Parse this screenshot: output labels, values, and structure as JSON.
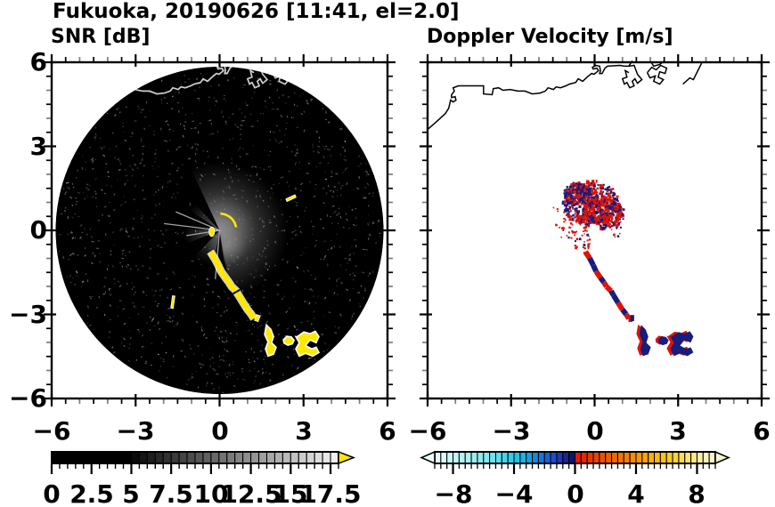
{
  "title": "Fukuoka, 20190626 [11:41, el=2.0]",
  "panels": {
    "snr": {
      "subtitle": "SNR [dB]"
    },
    "doppler": {
      "subtitle": "Doppler Velocity [m/s]"
    }
  },
  "axes": {
    "xlim": [
      -6,
      6
    ],
    "ylim": [
      -6,
      6
    ],
    "major_step": 3,
    "minor_step": 0.5,
    "x_tick_labels": [
      {
        "v": -6,
        "label": "−6"
      },
      {
        "v": -3,
        "label": "−3"
      },
      {
        "v": 0,
        "label": "0"
      },
      {
        "v": 3,
        "label": "3"
      },
      {
        "v": 6,
        "label": "6"
      }
    ],
    "y_tick_labels": [
      {
        "v": 6,
        "label": "6"
      },
      {
        "v": 3,
        "label": "3"
      },
      {
        "v": 0,
        "label": "0"
      },
      {
        "v": -3,
        "label": "−3"
      },
      {
        "v": -6,
        "label": "−6"
      }
    ]
  },
  "colorbars": {
    "snr": {
      "min": 0,
      "max": 18,
      "cells": 36,
      "tick_labels": [
        {
          "v": 0,
          "label": "0"
        },
        {
          "v": 2.5,
          "label": "2.5"
        },
        {
          "v": 5,
          "label": "5"
        },
        {
          "v": 7.5,
          "label": "7.5"
        },
        {
          "v": 10,
          "label": "10"
        },
        {
          "v": 12.5,
          "label": "12.5"
        },
        {
          "v": 15,
          "label": "15"
        },
        {
          "v": 17.5,
          "label": "17.5"
        }
      ],
      "black_below": 4.8,
      "over_arrow_color": "#ffe400"
    },
    "doppler": {
      "min": -9.2,
      "max": 9.2,
      "cells": 46,
      "tick_labels": [
        {
          "v": -8,
          "label": "−8"
        },
        {
          "v": -4,
          "label": "−4"
        },
        {
          "v": 0,
          "label": "0"
        },
        {
          "v": 4,
          "label": "4"
        },
        {
          "v": 8,
          "label": "8"
        }
      ],
      "neg_stops": [
        [
          0,
          "#eafcfc"
        ],
        [
          0.18,
          "#b9f3f3"
        ],
        [
          0.38,
          "#7fe8ef"
        ],
        [
          0.52,
          "#3ad2ea"
        ],
        [
          0.65,
          "#0fb0e4"
        ],
        [
          0.75,
          "#1479dd"
        ],
        [
          0.84,
          "#1e4ed2"
        ],
        [
          0.91,
          "#1c2fae"
        ],
        [
          0.96,
          "#131a80"
        ],
        [
          1,
          "#0e1156"
        ]
      ],
      "pos_stops": [
        [
          0,
          "#e41303"
        ],
        [
          0.12,
          "#ea3a00"
        ],
        [
          0.3,
          "#f26c00"
        ],
        [
          0.48,
          "#fa9d00"
        ],
        [
          0.62,
          "#ffc404"
        ],
        [
          0.76,
          "#ffdd48"
        ],
        [
          0.88,
          "#f9eda6"
        ],
        [
          1,
          "#f8f3d2"
        ]
      ],
      "under_arrow_color": "#eafcfc",
      "over_arrow_color": "#f8f3d2"
    }
  },
  "chart_data": {
    "type": "heatmap",
    "description": "Dual-panel radar PPI display: left = SNR [dB] on a black scan disk, right = Doppler velocity [m/s] on white; coordinates in km from the radar at (0,0).",
    "radar_center_km": [
      0,
      0
    ],
    "disk_radius_km": 5.86,
    "colors": {
      "snr_disk": "#000000",
      "snr_strong_echo": "#ffe800",
      "doppler_positive_red": "#dd1408",
      "doppler_negative_navy": "#161d7c",
      "coast_left": "#e0e0e0",
      "coast_right": "#000000"
    },
    "features": {
      "coastline_km": [
        [
          -6.0,
          3.6
        ],
        [
          -5.68,
          3.88
        ],
        [
          -5.36,
          4.17
        ],
        [
          -5.24,
          4.36
        ],
        [
          -5.17,
          4.65
        ],
        [
          -5.08,
          4.58
        ],
        [
          -4.98,
          4.65
        ],
        [
          -5.01,
          4.77
        ],
        [
          -5.14,
          4.74
        ],
        [
          -5.14,
          4.84
        ],
        [
          -5.04,
          4.97
        ],
        [
          -5.08,
          5.09
        ],
        [
          -4.89,
          5.16
        ],
        [
          -3.99,
          5.16
        ],
        [
          -3.99,
          4.87
        ],
        [
          -3.68,
          4.84
        ],
        [
          -3.64,
          5.06
        ],
        [
          -3.45,
          5.09
        ],
        [
          -3.29,
          5.0
        ],
        [
          -3.04,
          5.03
        ],
        [
          -2.75,
          4.97
        ],
        [
          -2.5,
          4.97
        ],
        [
          -2.24,
          4.87
        ],
        [
          -1.96,
          4.9
        ],
        [
          -1.77,
          4.97
        ],
        [
          -1.67,
          5.09
        ],
        [
          -1.48,
          5.03
        ],
        [
          -1.38,
          5.12
        ],
        [
          -1.23,
          5.09
        ],
        [
          -1.03,
          5.16
        ],
        [
          -0.91,
          5.22
        ],
        [
          -0.68,
          5.28
        ],
        [
          -0.59,
          5.41
        ],
        [
          -0.43,
          5.32
        ],
        [
          -0.27,
          5.47
        ],
        [
          -0.11,
          5.6
        ],
        [
          -0.02,
          5.57
        ],
        [
          0.14,
          5.7
        ],
        [
          0.08,
          5.79
        ],
        [
          -0.05,
          5.76
        ],
        [
          -0.08,
          5.82
        ],
        [
          0.05,
          5.89
        ],
        [
          0.18,
          5.86
        ],
        [
          0.21,
          5.7
        ],
        [
          0.18,
          5.6
        ],
        [
          0.27,
          5.6
        ],
        [
          0.37,
          5.79
        ],
        [
          0.46,
          5.86
        ],
        [
          0.91,
          5.89
        ],
        [
          1.07,
          5.86
        ],
        [
          1.23,
          5.86
        ],
        [
          1.35,
          6.05
        ]
      ],
      "coast_extras": [
        [
          [
            1.23,
            5.86
          ],
          [
            1.42,
            5.89
          ],
          [
            1.54,
            5.57
          ],
          [
            1.7,
            5.38
          ],
          [
            1.54,
            5.25
          ],
          [
            1.45,
            5.41
          ],
          [
            1.35,
            5.32
          ],
          [
            1.42,
            5.16
          ],
          [
            1.26,
            5.09
          ],
          [
            1.16,
            5.28
          ],
          [
            1.07,
            5.22
          ],
          [
            1.0,
            5.41
          ],
          [
            1.16,
            5.47
          ],
          [
            1.1,
            5.7
          ],
          [
            1.23,
            5.63
          ]
        ],
        [
          [
            1.89,
            5.63
          ],
          [
            2.05,
            5.82
          ],
          [
            2.21,
            5.73
          ],
          [
            2.37,
            5.89
          ],
          [
            2.59,
            5.79
          ],
          [
            2.53,
            5.6
          ],
          [
            2.34,
            5.66
          ],
          [
            2.28,
            5.47
          ],
          [
            2.47,
            5.38
          ],
          [
            2.34,
            5.22
          ],
          [
            2.12,
            5.32
          ],
          [
            2.18,
            5.51
          ],
          [
            1.99,
            5.44
          ],
          [
            1.89,
            5.63
          ]
        ],
        [
          [
            2.02,
            6.02
          ],
          [
            2.12,
            5.86
          ],
          [
            2.34,
            5.92
          ],
          [
            2.47,
            6.02
          ]
        ],
        [
          [
            3.17,
            5.22
          ],
          [
            3.42,
            5.44
          ],
          [
            3.55,
            5.38
          ],
          [
            3.87,
            6.02
          ]
        ]
      ],
      "streak_km": [
        [
          -0.33,
          -0.76
        ],
        [
          -0.18,
          -0.99
        ],
        [
          -0.05,
          -1.24
        ],
        [
          0.05,
          -1.46
        ],
        [
          0.21,
          -1.69
        ],
        [
          0.33,
          -1.85
        ],
        [
          0.43,
          -2.01
        ],
        [
          0.59,
          -2.16
        ],
        [
          0.68,
          -2.32
        ],
        [
          0.84,
          -2.58
        ],
        [
          1.0,
          -2.83
        ],
        [
          1.13,
          -2.99
        ],
        [
          1.23,
          -3.15
        ]
      ],
      "streak_doppler_colors": [
        "red",
        "navy",
        "navy",
        "red",
        "navy",
        "red",
        "red",
        "navy",
        "navy",
        "red",
        "navy",
        "red"
      ],
      "blobs_km": [
        {
          "points": [
            [
              1.67,
              -3.37
            ],
            [
              1.83,
              -3.53
            ],
            [
              1.93,
              -3.79
            ],
            [
              1.86,
              -4.01
            ],
            [
              2.02,
              -4.17
            ],
            [
              1.93,
              -4.42
            ],
            [
              1.73,
              -4.49
            ],
            [
              1.64,
              -4.23
            ],
            [
              1.73,
              -3.98
            ],
            [
              1.61,
              -3.72
            ]
          ],
          "red_offset": [
            -0.11,
            0.02
          ]
        },
        {
          "points": [
            [
              2.28,
              -3.9
            ],
            [
              2.4,
              -3.78
            ],
            [
              2.56,
              -3.8
            ],
            [
              2.66,
              -3.92
            ],
            [
              2.6,
              -4.05
            ],
            [
              2.44,
              -4.1
            ],
            [
              2.3,
              -4.02
            ]
          ],
          "red_offset": [
            -0.1,
            0.02
          ]
        },
        {
          "points": [
            [
              2.78,
              -3.79
            ],
            [
              3.01,
              -3.63
            ],
            [
              3.23,
              -3.69
            ],
            [
              3.42,
              -3.6
            ],
            [
              3.55,
              -3.79
            ],
            [
              3.45,
              -4.01
            ],
            [
              3.23,
              -3.91
            ],
            [
              3.07,
              -4.11
            ],
            [
              3.29,
              -4.23
            ],
            [
              3.45,
              -4.17
            ],
            [
              3.55,
              -4.36
            ],
            [
              3.33,
              -4.49
            ],
            [
              3.07,
              -4.39
            ],
            [
              2.85,
              -4.49
            ],
            [
              2.72,
              -4.23
            ],
            [
              2.85,
              -4.01
            ],
            [
              2.72,
              -3.79
            ]
          ],
          "red_offset": [
            -0.13,
            0.02
          ]
        }
      ],
      "small_bits_km": [
        {
          "x": 1.35,
          "y": -3.13,
          "w": 0.14,
          "h": 0.22,
          "rot": 20
        }
      ],
      "snr_overlays": {
        "haze_fan": {
          "a0": -115,
          "a1": 80,
          "r": 2.45,
          "opacity": 0.6
        },
        "haze_core": {
          "r": 1.3,
          "opacity": 0.55
        },
        "south_patch": {
          "x": 0.25,
          "y": -0.55,
          "r": 0.7,
          "opacity": 0.5
        },
        "dark_spokes": [
          [
            82,
            100,
            1.9
          ],
          [
            134,
            158,
            2.0
          ],
          [
            183,
            214,
            2.3
          ],
          [
            227,
            245,
            2.1
          ]
        ],
        "bright_rays": [
          [
            187,
            2.0
          ],
          [
            203,
            1.7
          ],
          [
            95,
            1.75
          ],
          [
            171,
            1.2
          ]
        ],
        "arc_dashes": {
          "radius": 0.6,
          "angles": [
            -78,
            -62,
            -47,
            -33,
            -20
          ],
          "dash_w": 0.19,
          "dash_h": 0.08
        },
        "center_blob": {
          "x": -0.28,
          "y": -0.05,
          "rx": 0.1,
          "ry": 0.17
        },
        "small_dashes": [
          {
            "x": 2.55,
            "y": 1.15,
            "w": 0.36,
            "h": 0.1,
            "rot": -25
          },
          {
            "x": -1.67,
            "y": -2.56,
            "w": 0.09,
            "h": 0.45,
            "rot": 8
          }
        ],
        "noise": {
          "n": 1250,
          "seed": 9,
          "max_radius": 5.78
        }
      },
      "doppler_cluster": {
        "seed": 42,
        "exclusion_radius": 0.22,
        "groups": [
          {
            "cx": -0.12,
            "cy": 0.95,
            "rx": 1.02,
            "ry": 0.8,
            "n": 520,
            "red_fraction": 0.5
          },
          {
            "cx": 0.3,
            "cy": 0.6,
            "rx": 0.75,
            "ry": 0.58,
            "n": 340,
            "red_fraction": 0.66
          },
          {
            "cx": -0.6,
            "cy": 1.3,
            "rx": 0.48,
            "ry": 0.4,
            "n": 190,
            "red_fraction": 0.36
          }
        ],
        "scatter": [
          {
            "cx": 0,
            "cy": 0.6,
            "r0": 0.5,
            "r1": 1.5,
            "a0": 170,
            "a1": 262,
            "n": 70,
            "red_fraction": 0.8
          },
          {
            "cx": 0,
            "cy": 0.0,
            "r0": 0.5,
            "r1": 0.95,
            "a0": -25,
            "a1": 45,
            "n": 16,
            "red_fraction": 0.7
          }
        ]
      }
    }
  }
}
